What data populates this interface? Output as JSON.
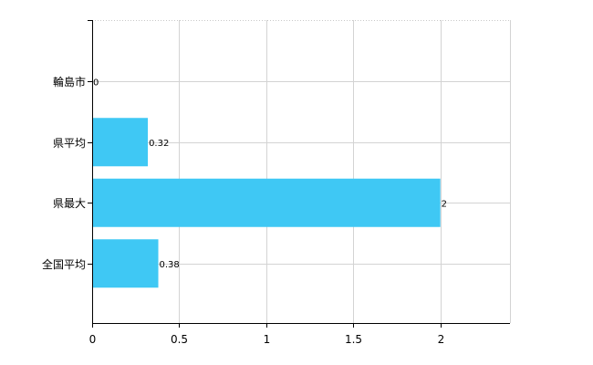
{
  "chart_data": {
    "type": "bar",
    "orientation": "horizontal",
    "title": "",
    "xlabel": "",
    "ylabel": "",
    "categories": [
      "輪島市",
      "県平均",
      "県最大",
      "全国平均"
    ],
    "values": [
      0,
      0.32,
      2,
      0.38
    ],
    "value_labels": [
      "0",
      "0.32",
      "2",
      "0.38"
    ],
    "xlim": [
      0,
      2.4
    ],
    "xticks": [
      0,
      0.5,
      1,
      1.5,
      2
    ],
    "xtick_labels": [
      "0",
      "0.5",
      "1",
      "1.5",
      "2"
    ],
    "grid": true,
    "legend": "none",
    "bar_color": "#3fc8f4",
    "grid_color": "#d3d3d3",
    "axis_color": "#000000"
  }
}
